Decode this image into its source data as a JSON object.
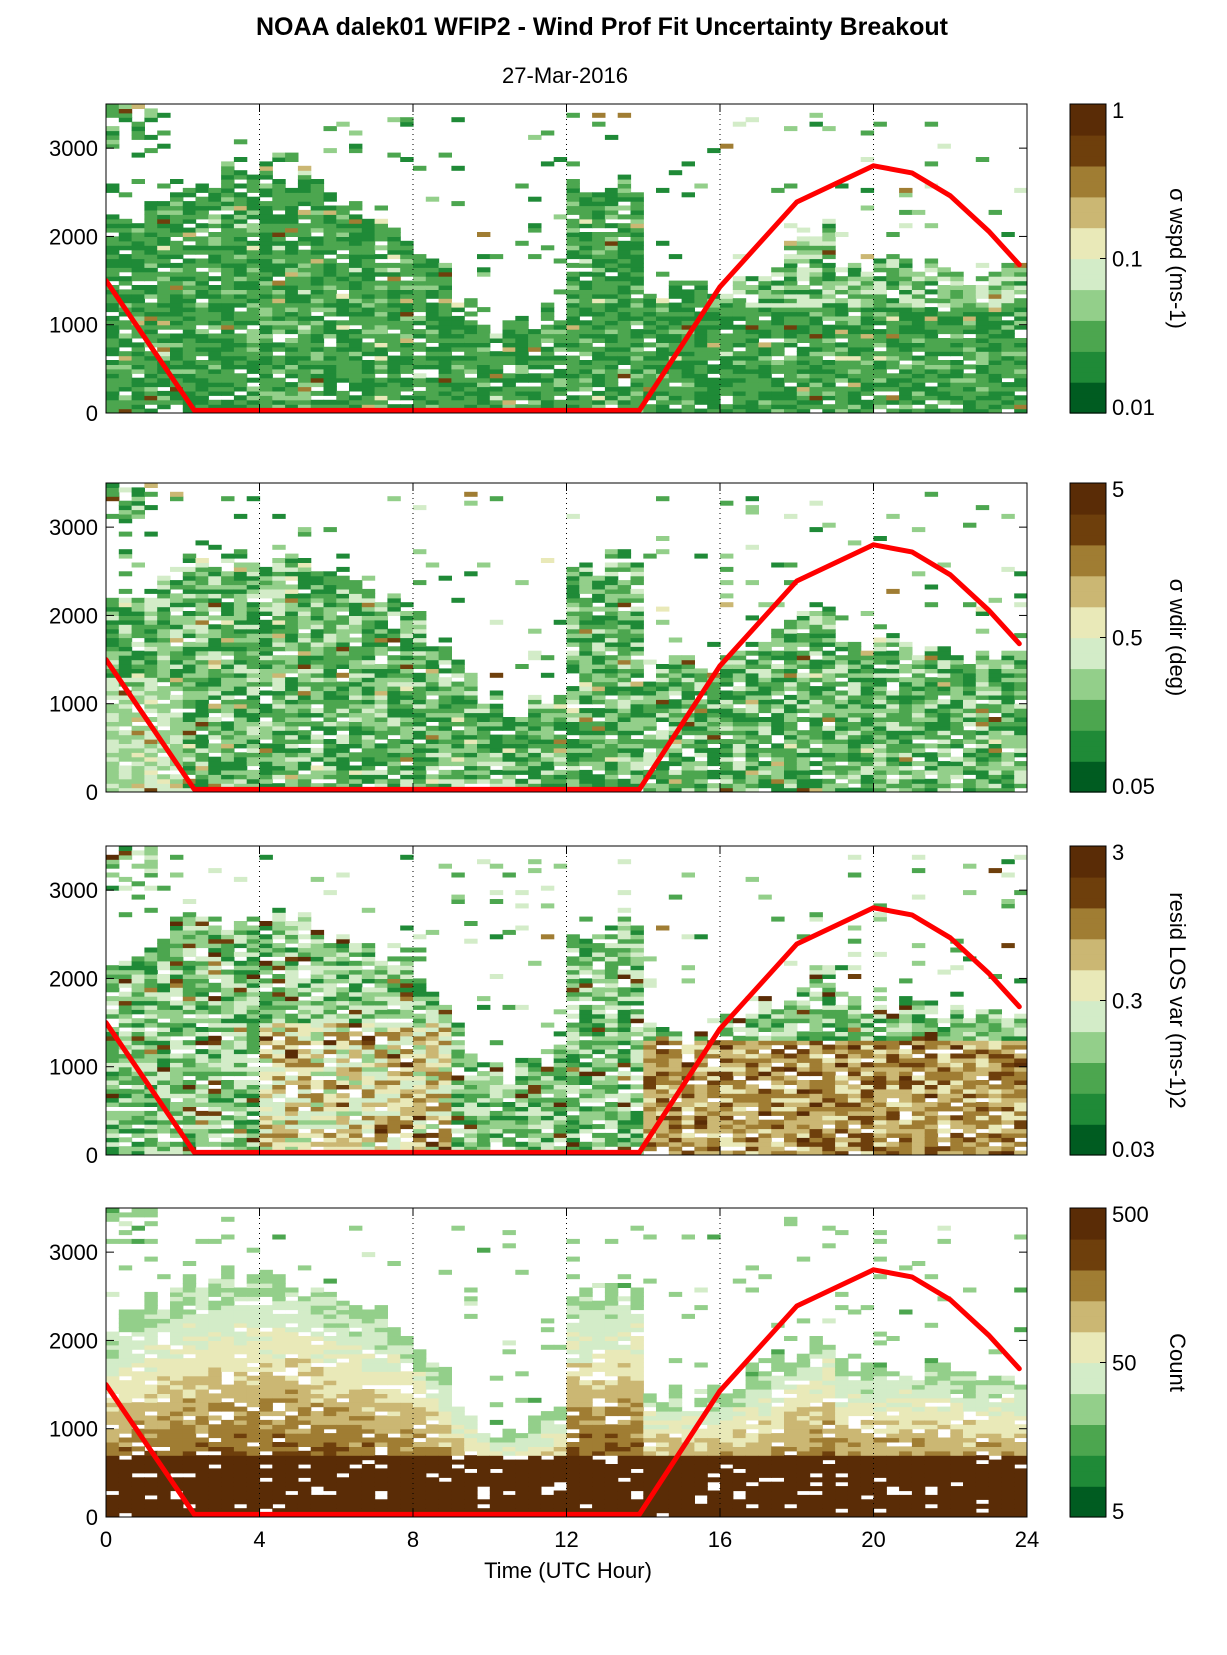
{
  "figure": {
    "title": "NOAA dalek01 WFIP2 - Wind Prof Fit Uncertainty Breakout",
    "subtitle": "27-Mar-2016",
    "xlabel": "Time (UTC Hour)"
  },
  "chart_data": [
    {
      "type": "heatmap",
      "panel": 1,
      "colorbar_label": "σ wspd (ms-1)",
      "colorbar_scale": "log",
      "colorbar_ticks": [
        "1",
        "0.1",
        "0.01"
      ],
      "colormap": "green-to-brown",
      "x": {
        "range": [
          0,
          24
        ],
        "ticks": [
          "0",
          "4",
          "8",
          "12",
          "16",
          "20",
          "24"
        ]
      },
      "y": {
        "range": [
          0,
          3500
        ],
        "ticks": [
          "0",
          "1000",
          "2000",
          "3000"
        ]
      },
      "grid": "vertical dotted lines every 4 h",
      "overlay": {
        "name": "solar elevation curve",
        "color": "#ff0000"
      }
    },
    {
      "type": "heatmap",
      "panel": 2,
      "colorbar_label": "σ wdir (deg)",
      "colorbar_scale": "log",
      "colorbar_ticks": [
        "5",
        "0.5",
        "0.05"
      ],
      "colormap": "green-to-brown",
      "x": {
        "range": [
          0,
          24
        ],
        "ticks": [
          "0",
          "4",
          "8",
          "12",
          "16",
          "20",
          "24"
        ]
      },
      "y": {
        "range": [
          0,
          3500
        ],
        "ticks": [
          "0",
          "1000",
          "2000",
          "3000"
        ]
      },
      "grid": "vertical dotted lines every 4 h",
      "overlay": {
        "name": "solar elevation curve",
        "color": "#ff0000"
      }
    },
    {
      "type": "heatmap",
      "panel": 3,
      "colorbar_label": "resid LOS var (ms-1)2",
      "colorbar_scale": "log",
      "colorbar_ticks": [
        "3",
        "0.3",
        "0.03"
      ],
      "colormap": "green-to-brown",
      "x": {
        "range": [
          0,
          24
        ],
        "ticks": [
          "0",
          "4",
          "8",
          "12",
          "16",
          "20",
          "24"
        ]
      },
      "y": {
        "range": [
          0,
          3500
        ],
        "ticks": [
          "0",
          "1000",
          "2000",
          "3000"
        ]
      },
      "grid": "vertical dotted lines every 4 h",
      "overlay": {
        "name": "solar elevation curve",
        "color": "#ff0000"
      }
    },
    {
      "type": "heatmap",
      "panel": 4,
      "colorbar_label": "Count",
      "colorbar_scale": "log",
      "colorbar_ticks": [
        "500",
        "50",
        "5"
      ],
      "colormap": "green-to-brown",
      "x": {
        "range": [
          0,
          24
        ],
        "ticks": [
          "0",
          "4",
          "8",
          "12",
          "16",
          "20",
          "24"
        ]
      },
      "y": {
        "range": [
          0,
          3500
        ],
        "ticks": [
          "0",
          "1000",
          "2000",
          "3000"
        ]
      },
      "grid": "vertical dotted lines every 4 h",
      "overlay": {
        "name": "solar elevation curve",
        "color": "#ff0000"
      }
    }
  ],
  "overlay_curve": {
    "points": [
      [
        0,
        1500
      ],
      [
        2.3,
        30
      ],
      [
        13.9,
        30
      ],
      [
        16,
        1430
      ],
      [
        18,
        2390
      ],
      [
        20,
        2800
      ],
      [
        21,
        2720
      ],
      [
        22,
        2460
      ],
      [
        23,
        2060
      ],
      [
        23.8,
        1680
      ]
    ]
  },
  "colors": {
    "overlay": "#ff0000",
    "cmap": [
      "#005c21",
      "#1f8a37",
      "#4ca64f",
      "#93cf8a",
      "#d3ecc8",
      "#e9e9b8",
      "#cbb773",
      "#a07d33",
      "#6e3f0c",
      "#5a2c06"
    ]
  }
}
